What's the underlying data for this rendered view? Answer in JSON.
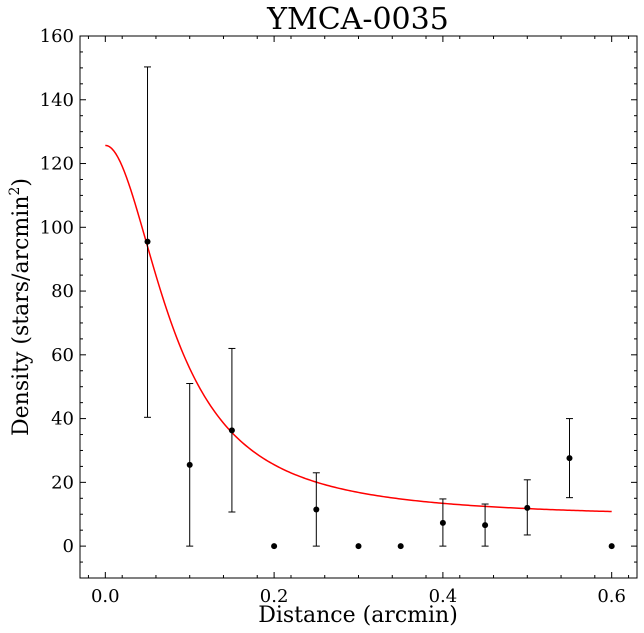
{
  "chart_data": {
    "type": "scatter",
    "title": "YMCA-0035",
    "xlabel": "Distance (arcmin)",
    "ylabel_main": "Density (stars/arcmin",
    "ylabel_sup": "2",
    "ylabel_close": ")",
    "xlim": [
      -0.03,
      0.63
    ],
    "ylim": [
      -10,
      160
    ],
    "xticks": [
      0.0,
      0.2,
      0.4,
      0.6
    ],
    "xtick_labels": [
      "0.0",
      "0.2",
      "0.4",
      "0.6"
    ],
    "yticks": [
      0,
      20,
      40,
      60,
      80,
      100,
      120,
      140,
      160
    ],
    "ytick_labels": [
      "0",
      "20",
      "40",
      "60",
      "80",
      "100",
      "120",
      "140",
      "160"
    ],
    "grid": false,
    "series": [
      {
        "kind": "points-with-errorbars",
        "color": "#000000",
        "points": [
          {
            "x": 0.05,
            "y": 95.5,
            "lo": 40.4,
            "hi": 150.3
          },
          {
            "x": 0.1,
            "y": 25.5,
            "lo": 0.0,
            "hi": 51.0
          },
          {
            "x": 0.15,
            "y": 36.3,
            "lo": 10.7,
            "hi": 62.0
          },
          {
            "x": 0.2,
            "y": 0.0
          },
          {
            "x": 0.25,
            "y": 11.5,
            "lo": 0.0,
            "hi": 23.0
          },
          {
            "x": 0.3,
            "y": 0.0
          },
          {
            "x": 0.35,
            "y": 0.0
          },
          {
            "x": 0.4,
            "y": 7.3,
            "lo": 0.0,
            "hi": 14.8
          },
          {
            "x": 0.45,
            "y": 6.6,
            "lo": 0.0,
            "hi": 13.2
          },
          {
            "x": 0.5,
            "y": 12.0,
            "lo": 3.5,
            "hi": 20.8
          },
          {
            "x": 0.55,
            "y": 27.6,
            "lo": 15.2,
            "hi": 40.0
          },
          {
            "x": 0.6,
            "y": 0.0
          }
        ]
      },
      {
        "kind": "fit-curve",
        "color": "#ff0000",
        "model": "king",
        "params": {
          "background": 8.7,
          "amplitude": 117.0,
          "core_radius": 0.082
        },
        "x_range": [
          0.0,
          0.6
        ]
      }
    ]
  }
}
